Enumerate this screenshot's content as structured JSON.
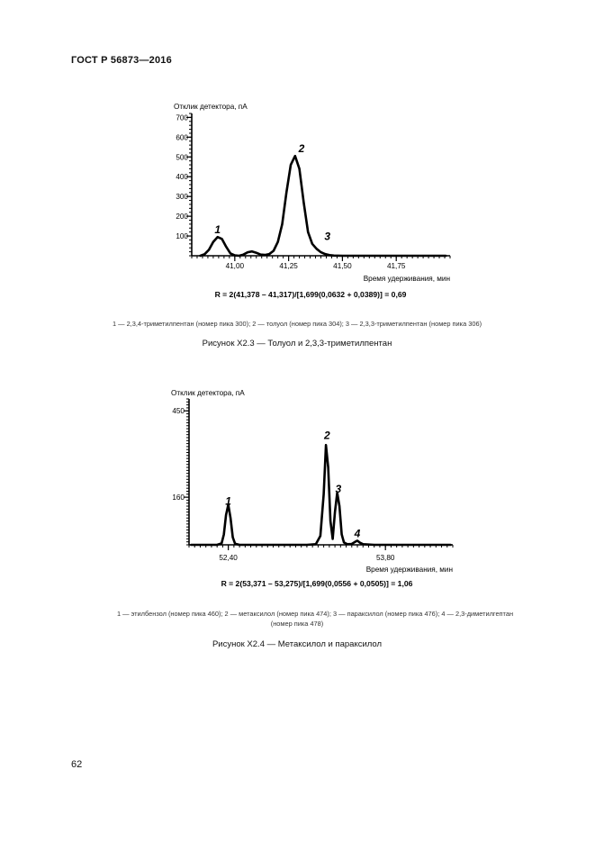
{
  "header": {
    "standard": "ГОСТ Р 56873—2016"
  },
  "page_number": "62",
  "figures": [
    {
      "caption": "Рисунок X2.3 — Толуол и 2,3,3-триметилпентан",
      "legend": "1 — 2,3,4-триметилпентан (номер пика 300); 2 — толуол (номер пика 304); 3 — 2,3,3-триметилпентан (номер пика 306)",
      "formula": "R = 2(41,378 – 41,317)/[1,699(0,0632 + 0,0389)] = 0,69"
    },
    {
      "caption": "Рисунок X2.4 — Метаксилол и параксилол",
      "legend_line1": "1 — этилбензол (номер пика 460); 2 — метаксилол (номер пика 474); 3 — параксилол (номер пика 476); 4 — 2,3-диметилгептан",
      "legend_line2": "(номер пика 478)",
      "formula": "R = 2(53,371 – 53,275)/[1,699(0,0556 + 0,0505)] = 1,06"
    }
  ],
  "chart_data": [
    {
      "type": "line",
      "ylabel": "Отклик детектора, пА",
      "xlabel": "Время удерживания, мин",
      "yticks": [
        100,
        200,
        300,
        400,
        500,
        600,
        700
      ],
      "ytick_labels": [
        "100",
        "200",
        "300",
        "400",
        "500",
        "600",
        "700"
      ],
      "xticks": [
        41.0,
        41.25,
        41.5,
        41.75
      ],
      "xtick_labels": [
        "41,00",
        "41,25",
        "41,50",
        "41,75"
      ],
      "xlim": [
        40.8,
        42.0
      ],
      "ylim": [
        0,
        720
      ],
      "peak_labels": [
        {
          "label": "1",
          "x": 40.92,
          "y": 115
        },
        {
          "label": "2",
          "x": 41.31,
          "y": 525
        },
        {
          "label": "3",
          "x": 41.43,
          "y": 80
        }
      ],
      "series": [
        {
          "x": [
            40.84,
            40.86,
            40.88,
            40.9,
            40.92,
            40.94,
            40.96,
            40.98,
            41.0,
            41.02,
            41.04,
            41.06,
            41.08,
            41.1,
            41.12,
            41.14,
            41.16,
            41.18,
            41.2,
            41.22,
            41.24,
            41.26,
            41.28,
            41.3,
            41.32,
            41.34,
            41.36,
            41.38,
            41.4,
            41.42,
            41.44,
            41.46,
            41.5,
            41.6,
            41.7,
            41.8,
            41.9,
            41.98
          ],
          "y": [
            0,
            8,
            30,
            70,
            95,
            85,
            45,
            12,
            2,
            0,
            6,
            18,
            22,
            15,
            6,
            4,
            8,
            25,
            70,
            160,
            320,
            460,
            505,
            440,
            270,
            120,
            60,
            35,
            18,
            8,
            3,
            1,
            0,
            0,
            0,
            0,
            0,
            0
          ]
        }
      ]
    },
    {
      "type": "line",
      "ylabel": "Отклик детектора, пА",
      "xlabel": "Время удерживания, мин",
      "yticks": [
        160,
        450
      ],
      "ytick_labels": [
        "160",
        "450"
      ],
      "xticks": [
        52.4,
        53.8
      ],
      "xtick_labels": [
        "52,40",
        "53,80"
      ],
      "xlim": [
        52.05,
        54.4
      ],
      "ylim": [
        0,
        490
      ],
      "peak_labels": [
        {
          "label": "1",
          "x": 52.4,
          "y": 135
        },
        {
          "label": "2",
          "x": 53.28,
          "y": 355
        },
        {
          "label": "3",
          "x": 53.38,
          "y": 175
        },
        {
          "label": "4",
          "x": 53.55,
          "y": 25
        }
      ],
      "series": [
        {
          "x": [
            52.07,
            52.3,
            52.34,
            52.36,
            52.38,
            52.4,
            52.42,
            52.44,
            52.46,
            52.5,
            52.7,
            52.9,
            53.1,
            53.18,
            53.22,
            53.25,
            53.27,
            53.29,
            53.31,
            53.33,
            53.35,
            53.37,
            53.39,
            53.41,
            53.43,
            53.46,
            53.5,
            53.53,
            53.55,
            53.57,
            53.6,
            53.7,
            54.0,
            54.38
          ],
          "y": [
            0,
            0,
            5,
            35,
            100,
            135,
            90,
            25,
            4,
            0,
            0,
            0,
            0,
            2,
            30,
            170,
            335,
            260,
            80,
            20,
            110,
            175,
            130,
            35,
            8,
            2,
            3,
            10,
            14,
            8,
            2,
            0,
            0,
            0
          ]
        }
      ]
    }
  ]
}
